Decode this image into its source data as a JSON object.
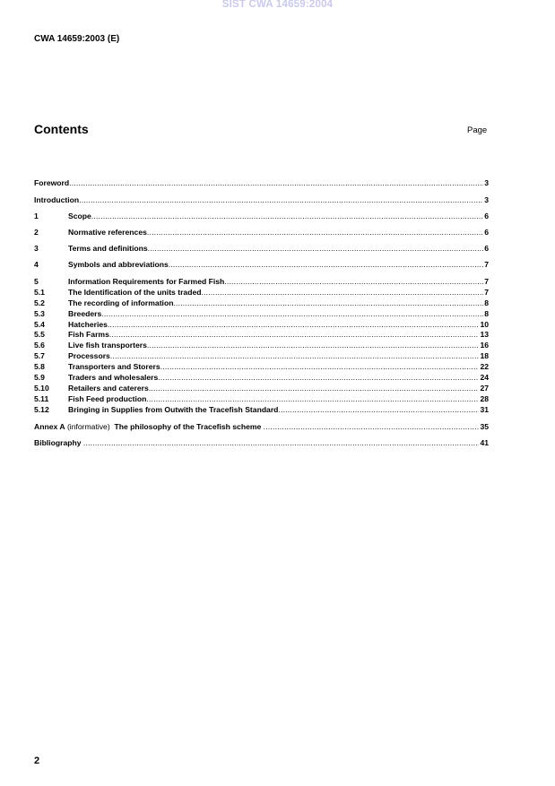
{
  "watermark": "SIST CWA 14659:2004",
  "header": {
    "doc_id": "CWA 14659:2003 (E)"
  },
  "toc": {
    "heading": "Contents",
    "page_label": "Page",
    "entries": [
      {
        "num": "",
        "title": "Foreword",
        "page": "3"
      },
      {
        "num": "",
        "title": "Introduction",
        "page": "3"
      },
      {
        "num": "1",
        "title": "Scope",
        "page": "6"
      },
      {
        "num": "2",
        "title": "Normative references",
        "page": "6"
      },
      {
        "num": "3",
        "title": "Terms and definitions",
        "page": "6"
      },
      {
        "num": "4",
        "title": "Symbols and abbreviations",
        "page": "7"
      },
      {
        "num": "5",
        "title": "Information Requirements for Farmed Fish",
        "page": "7"
      },
      {
        "num": "5.1",
        "title": "The Identification of the units traded",
        "page": "7"
      },
      {
        "num": "5.2",
        "title": "The recording of information",
        "page": "8"
      },
      {
        "num": "5.3",
        "title": "Breeders",
        "page": "8"
      },
      {
        "num": "5.4",
        "title": "Hatcheries",
        "page": "10"
      },
      {
        "num": "5.5",
        "title": "Fish Farms",
        "page": "13"
      },
      {
        "num": "5.6",
        "title": "Live fish transporters",
        "page": "16"
      },
      {
        "num": "5.7",
        "title": "Processors",
        "page": "18"
      },
      {
        "num": "5.8",
        "title": "Transporters and Storers",
        "page": "22"
      },
      {
        "num": "5.9",
        "title": "Traders and wholesalers",
        "page": "24"
      },
      {
        "num": "5.10",
        "title": "Retailers and caterers",
        "page": "27"
      },
      {
        "num": "5.11",
        "title": "Fish Feed production",
        "page": "28"
      },
      {
        "num": "5.12",
        "title": "Bringing in Supplies from Outwith the Tracefish Standard",
        "page": "31"
      }
    ],
    "annex": {
      "label": "Annex A",
      "qualifier": "(informative)",
      "title": "The philosophy of the Tracefish scheme",
      "page": "35"
    },
    "bibliography": {
      "title": "Bibliography",
      "page": "41"
    }
  },
  "footer": {
    "page_number": "2"
  }
}
